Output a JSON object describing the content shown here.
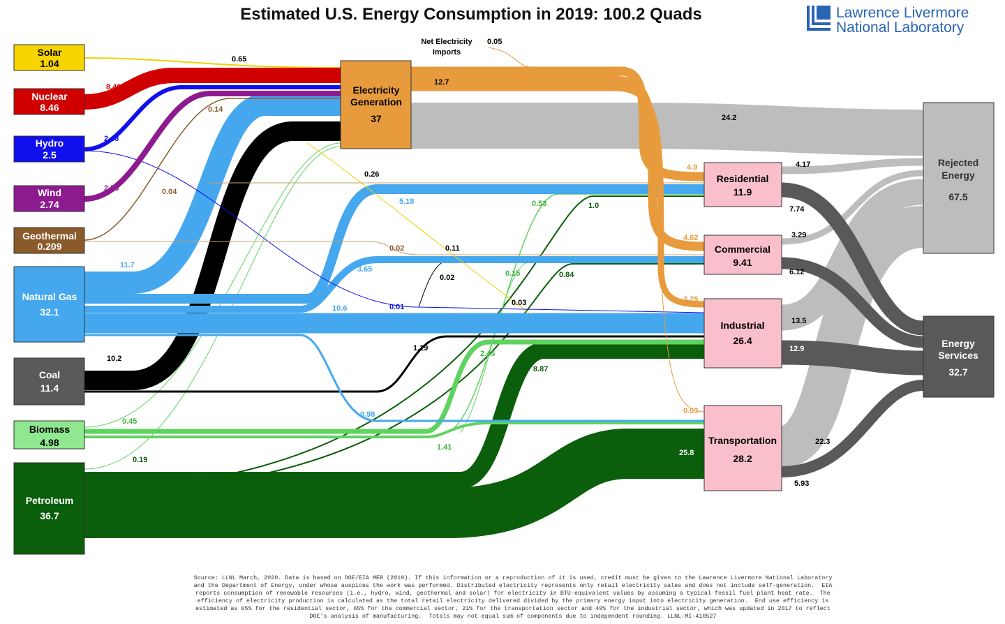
{
  "title": "Estimated U.S. Energy Consumption in 2019: 100.2 Quads",
  "logo": {
    "line1": "Lawrence Livermore",
    "line2": "National Laboratory"
  },
  "net_imports": {
    "label1": "Net Electricity",
    "label2": "Imports",
    "value": "0.05"
  },
  "colors": {
    "solar": "#f2d000",
    "nuclear": "#d10000",
    "hydro": "#1010ee",
    "wind": "#8e1a90",
    "geothermal": "#8b5a2b",
    "natural_gas": "#45a8ee",
    "coal": "#000000",
    "biomass": "#5fd35f",
    "petroleum": "#0b5e0b",
    "electricity": "#e89b3c",
    "rejected": "#bdbdbd",
    "services": "#595959",
    "sector": "#f9bfcb"
  },
  "nodes": {
    "solar": {
      "label": "Solar",
      "value": "1.04"
    },
    "nuclear": {
      "label": "Nuclear",
      "value": "8.46"
    },
    "hydro": {
      "label": "Hydro",
      "value": "2.5"
    },
    "wind": {
      "label": "Wind",
      "value": "2.74"
    },
    "geothermal": {
      "label": "Geothermal",
      "value": "0.209"
    },
    "natural_gas": {
      "label": "Natural Gas",
      "value": "32.1"
    },
    "coal": {
      "label": "Coal",
      "value": "11.4"
    },
    "biomass": {
      "label": "Biomass",
      "value": "4.98"
    },
    "petroleum": {
      "label": "Petroleum",
      "value": "36.7"
    },
    "electricity": {
      "label1": "Electricity",
      "label2": "Generation",
      "value": "37"
    },
    "residential": {
      "label": "Residential",
      "value": "11.9"
    },
    "commercial": {
      "label": "Commercial",
      "value": "9.41"
    },
    "industrial": {
      "label": "Industrial",
      "value": "26.4"
    },
    "transportation": {
      "label": "Transportation",
      "value": "28.2"
    },
    "rejected": {
      "label1": "Rejected",
      "label2": "Energy",
      "value": "67.5"
    },
    "services": {
      "label1": "Energy",
      "label2": "Services",
      "value": "32.7"
    }
  },
  "flows": {
    "solar_elec": "0.65",
    "nuclear_elec": "8.46",
    "hydro_elec": "2.48",
    "wind_elec": "2.73",
    "geo_elec": "0.14",
    "geo_other": "0.04",
    "ng_elec": "11.7",
    "coal_elec": "10.2",
    "biomass_elec": "0.45",
    "petro_elec": "0.19",
    "elec_out": "12.7",
    "elec_rejected": "24.2",
    "elec_res": "4.9",
    "elec_com": "4.62",
    "elec_ind": "3.25",
    "elec_trans": "0.03",
    "solar_res": "0.26",
    "ng_res": "5.18",
    "biomass_res": "0.53",
    "petro_res": "1.0",
    "geo_com": "0.02",
    "solar_com": "0.11",
    "ng_com": "3.65",
    "coal_com": "0.02",
    "biomass_com": "0.15",
    "petro_com": "0.84",
    "hydro_ind": "0.01",
    "solar_ind": "0.03",
    "ng_ind": "10.6",
    "coal_ind": "1.19",
    "biomass_ind": "2.45",
    "petro_ind": "8.87",
    "ng_trans": "0.98",
    "biomass_trans": "1.41",
    "petro_trans": "25.8",
    "res_rej": "4.17",
    "res_serv": "7.74",
    "com_rej": "3.29",
    "com_serv": "6.12",
    "ind_rej": "13.5",
    "ind_serv": "12.9",
    "trans_rej": "22.3",
    "trans_serv": "5.93"
  },
  "footnote": [
    "Source: LLNL March, 2020. Data is based on DOE/EIA MER (2019). If this information or a reproduction of it is used, credit must be given to the Lawrence Livermore National Laboratory",
    "and the Department of Energy, under whose auspices the work was performed. Distributed electricity represents only retail electricity sales and does not include self-generation.  EIA",
    "reports consumption of renewable resources (i.e., hydro, wind, geothermal and solar) for electricity in BTU-equivalent values by assuming a typical fossil fuel plant heat rate.  The",
    "efficiency of electricity production is calculated as the total retail electricity delivered divided by the primary energy input into electricity generation.  End use efficiency is",
    "estimated as 65% for the residential sector, 65% for the commercial sector, 21% for the transportation sector and 49% for the industrial sector, which was updated in 2017 to reflect",
    "DOE's analysis of manufacturing.  Totals may not equal sum of components due to independent rounding. LLNL-MI-410527"
  ]
}
